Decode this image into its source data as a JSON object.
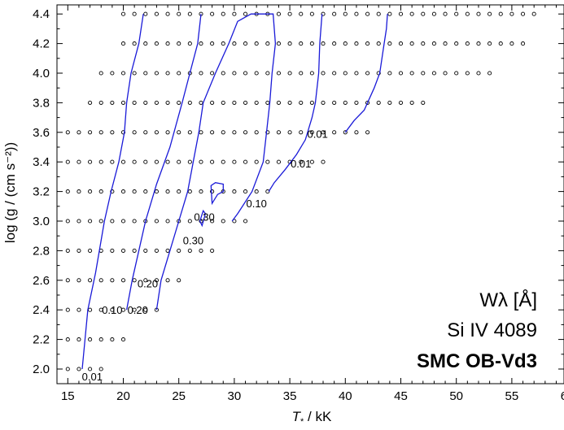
{
  "chart_data": {
    "type": "scatter",
    "xlabel_main": "T",
    "xlabel_sub": "*",
    "xlabel_rest": " / kK",
    "ylabel": "log (g / (cm s⁻²))",
    "xlim": [
      15,
      60
    ],
    "ylim": [
      2.0,
      4.4
    ],
    "xticks": [
      "15",
      "20",
      "25",
      "30",
      "35",
      "40",
      "45",
      "50",
      "55",
      "60"
    ],
    "yticks": [
      "2.0",
      "2.2",
      "2.4",
      "2.6",
      "2.8",
      "3.0",
      "3.2",
      "3.4",
      "3.6",
      "3.8",
      "4.0",
      "4.2",
      "4.4"
    ],
    "annotation_lines": [
      "Wλ  [Å]",
      "Si IV 4089",
      "SMC OB-Vd3"
    ],
    "grid_rows": [
      {
        "logg": 4.4,
        "tmin": 20,
        "tmax": 57
      },
      {
        "logg": 4.2,
        "tmin": 20,
        "tmax": 56
      },
      {
        "logg": 4.0,
        "tmin": 18,
        "tmax": 53
      },
      {
        "logg": 3.8,
        "tmin": 17,
        "tmax": 47
      },
      {
        "logg": 3.6,
        "tmin": 15,
        "tmax": 42
      },
      {
        "logg": 3.4,
        "tmin": 15,
        "tmax": 38
      },
      {
        "logg": 3.2,
        "tmin": 15,
        "tmax": 33
      },
      {
        "logg": 3.0,
        "tmin": 15,
        "tmax": 31
      },
      {
        "logg": 2.8,
        "tmin": 15,
        "tmax": 28
      },
      {
        "logg": 2.6,
        "tmin": 15,
        "tmax": 25
      },
      {
        "logg": 2.4,
        "tmin": 15,
        "tmax": 23
      },
      {
        "logg": 2.2,
        "tmin": 15,
        "tmax": 20
      },
      {
        "logg": 2.0,
        "tmin": 15,
        "tmax": 18
      }
    ],
    "contours": [
      {
        "level": "0.01",
        "points": [
          [
            16.3,
            2.0
          ],
          [
            16.8,
            2.4
          ],
          [
            17.5,
            2.65
          ],
          [
            18.3,
            3.0
          ],
          [
            18.9,
            3.2
          ],
          [
            19.6,
            3.4
          ],
          [
            20.1,
            3.6
          ],
          [
            20.3,
            3.8
          ],
          [
            20.7,
            4.0
          ],
          [
            21.4,
            4.2
          ],
          [
            21.8,
            4.4
          ]
        ]
      },
      {
        "level": "0.10",
        "points": [
          [
            20.3,
            2.4
          ],
          [
            20.8,
            2.6
          ],
          [
            22.0,
            3.0
          ],
          [
            23.0,
            3.25
          ],
          [
            24.2,
            3.5
          ],
          [
            25.3,
            3.8
          ],
          [
            26.0,
            4.0
          ],
          [
            26.7,
            4.2
          ],
          [
            27.0,
            4.4
          ]
        ]
      },
      {
        "level": "0.20",
        "points": [
          [
            23.0,
            2.4
          ],
          [
            23.4,
            2.6
          ],
          [
            24.2,
            2.8
          ],
          [
            25.0,
            3.0
          ],
          [
            25.8,
            3.2
          ],
          [
            26.3,
            3.4
          ],
          [
            26.8,
            3.6
          ],
          [
            27.2,
            3.8
          ],
          [
            28.3,
            4.0
          ],
          [
            29.5,
            4.2
          ],
          [
            30.3,
            4.35
          ],
          [
            31.5,
            4.4
          ],
          [
            33.5,
            4.4
          ],
          [
            33.7,
            4.2
          ],
          [
            33.4,
            4.0
          ],
          [
            33.2,
            3.8
          ],
          [
            32.9,
            3.6
          ],
          [
            32.6,
            3.4
          ],
          [
            31.6,
            3.2
          ],
          [
            30.3,
            3.05
          ],
          [
            29.8,
            3.0
          ]
        ]
      },
      {
        "level": "0.30",
        "points": [
          [
            27.1,
            2.97
          ],
          [
            27.4,
            3.05
          ],
          [
            27.2,
            3.07
          ],
          [
            26.9,
            3.0
          ],
          [
            27.1,
            2.97
          ]
        ],
        "closed": true
      },
      {
        "level": "0.30",
        "points": [
          [
            28.0,
            3.12
          ],
          [
            28.5,
            3.18
          ],
          [
            29.0,
            3.2
          ],
          [
            29.0,
            3.25
          ],
          [
            28.3,
            3.26
          ],
          [
            27.9,
            3.24
          ],
          [
            28.0,
            3.12
          ]
        ],
        "closed": true
      },
      {
        "level": "0.10",
        "points": [
          [
            33.1,
            3.2
          ],
          [
            33.6,
            3.26
          ],
          [
            34.6,
            3.35
          ],
          [
            35.6,
            3.45
          ],
          [
            36.4,
            3.55
          ],
          [
            37.0,
            3.7
          ],
          [
            37.3,
            3.8
          ],
          [
            37.6,
            4.0
          ],
          [
            37.7,
            4.2
          ],
          [
            37.9,
            4.4
          ]
        ]
      },
      {
        "level": "0.01",
        "points": [
          [
            40.0,
            3.6
          ],
          [
            40.8,
            3.68
          ],
          [
            41.7,
            3.75
          ],
          [
            42.6,
            3.9
          ],
          [
            43.1,
            4.0
          ],
          [
            43.3,
            4.1
          ],
          [
            43.5,
            4.2
          ],
          [
            43.7,
            4.3
          ],
          [
            43.8,
            4.4
          ]
        ]
      }
    ],
    "contour_labels": [
      {
        "text": "0.01",
        "x": 17.2,
        "y": 1.95
      },
      {
        "text": "0.10",
        "x": 19.0,
        "y": 2.4
      },
      {
        "text": "0.20",
        "x": 21.3,
        "y": 2.4
      },
      {
        "text": "0.20",
        "x": 22.2,
        "y": 2.58
      },
      {
        "text": "0.30",
        "x": 27.3,
        "y": 3.03
      },
      {
        "text": "0.30",
        "x": 26.3,
        "y": 2.87
      },
      {
        "text": "0.10",
        "x": 32.0,
        "y": 3.12
      },
      {
        "text": "0.01",
        "x": 36.0,
        "y": 3.39
      },
      {
        "text": "0.01",
        "x": 37.5,
        "y": 3.59
      }
    ]
  }
}
